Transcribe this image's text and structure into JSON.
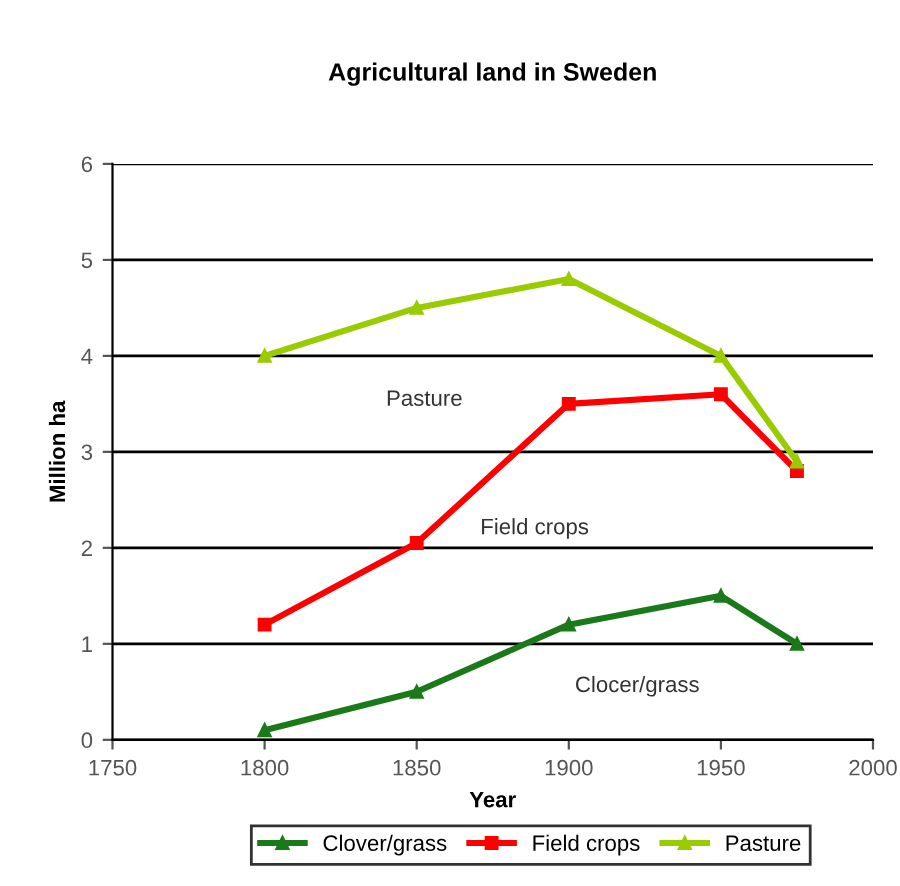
{
  "chart_data": {
    "type": "line",
    "title": "Agricultural land in Sweden",
    "xlabel": "Year",
    "ylabel": "Million ha",
    "x": [
      1800,
      1850,
      1900,
      1950,
      1975
    ],
    "series": [
      {
        "name": "Clover/grass",
        "color": "#1a7a1a",
        "marker": "triangle",
        "values": [
          0.1,
          0.5,
          1.2,
          1.5,
          1.0
        ]
      },
      {
        "name": "Field crops",
        "color": "#ff0000",
        "marker": "square",
        "values": [
          1.2,
          2.05,
          3.5,
          3.6,
          2.8
        ]
      },
      {
        "name": "Pasture",
        "color": "#99cc00",
        "marker": "triangle",
        "values": [
          4.0,
          4.5,
          4.8,
          4.0,
          2.9
        ]
      }
    ],
    "annotations": [
      "Pasture",
      "Field crops",
      "Clocer/grass"
    ],
    "xlim": [
      1750,
      2000
    ],
    "xticks": [
      1750,
      1800,
      1850,
      1900,
      1950,
      2000
    ],
    "ylim": [
      0,
      6
    ],
    "yticks": [
      0,
      1,
      2,
      3,
      4,
      5,
      6
    ],
    "grid": "y",
    "legend": "bottom",
    "line_style": "solid"
  }
}
